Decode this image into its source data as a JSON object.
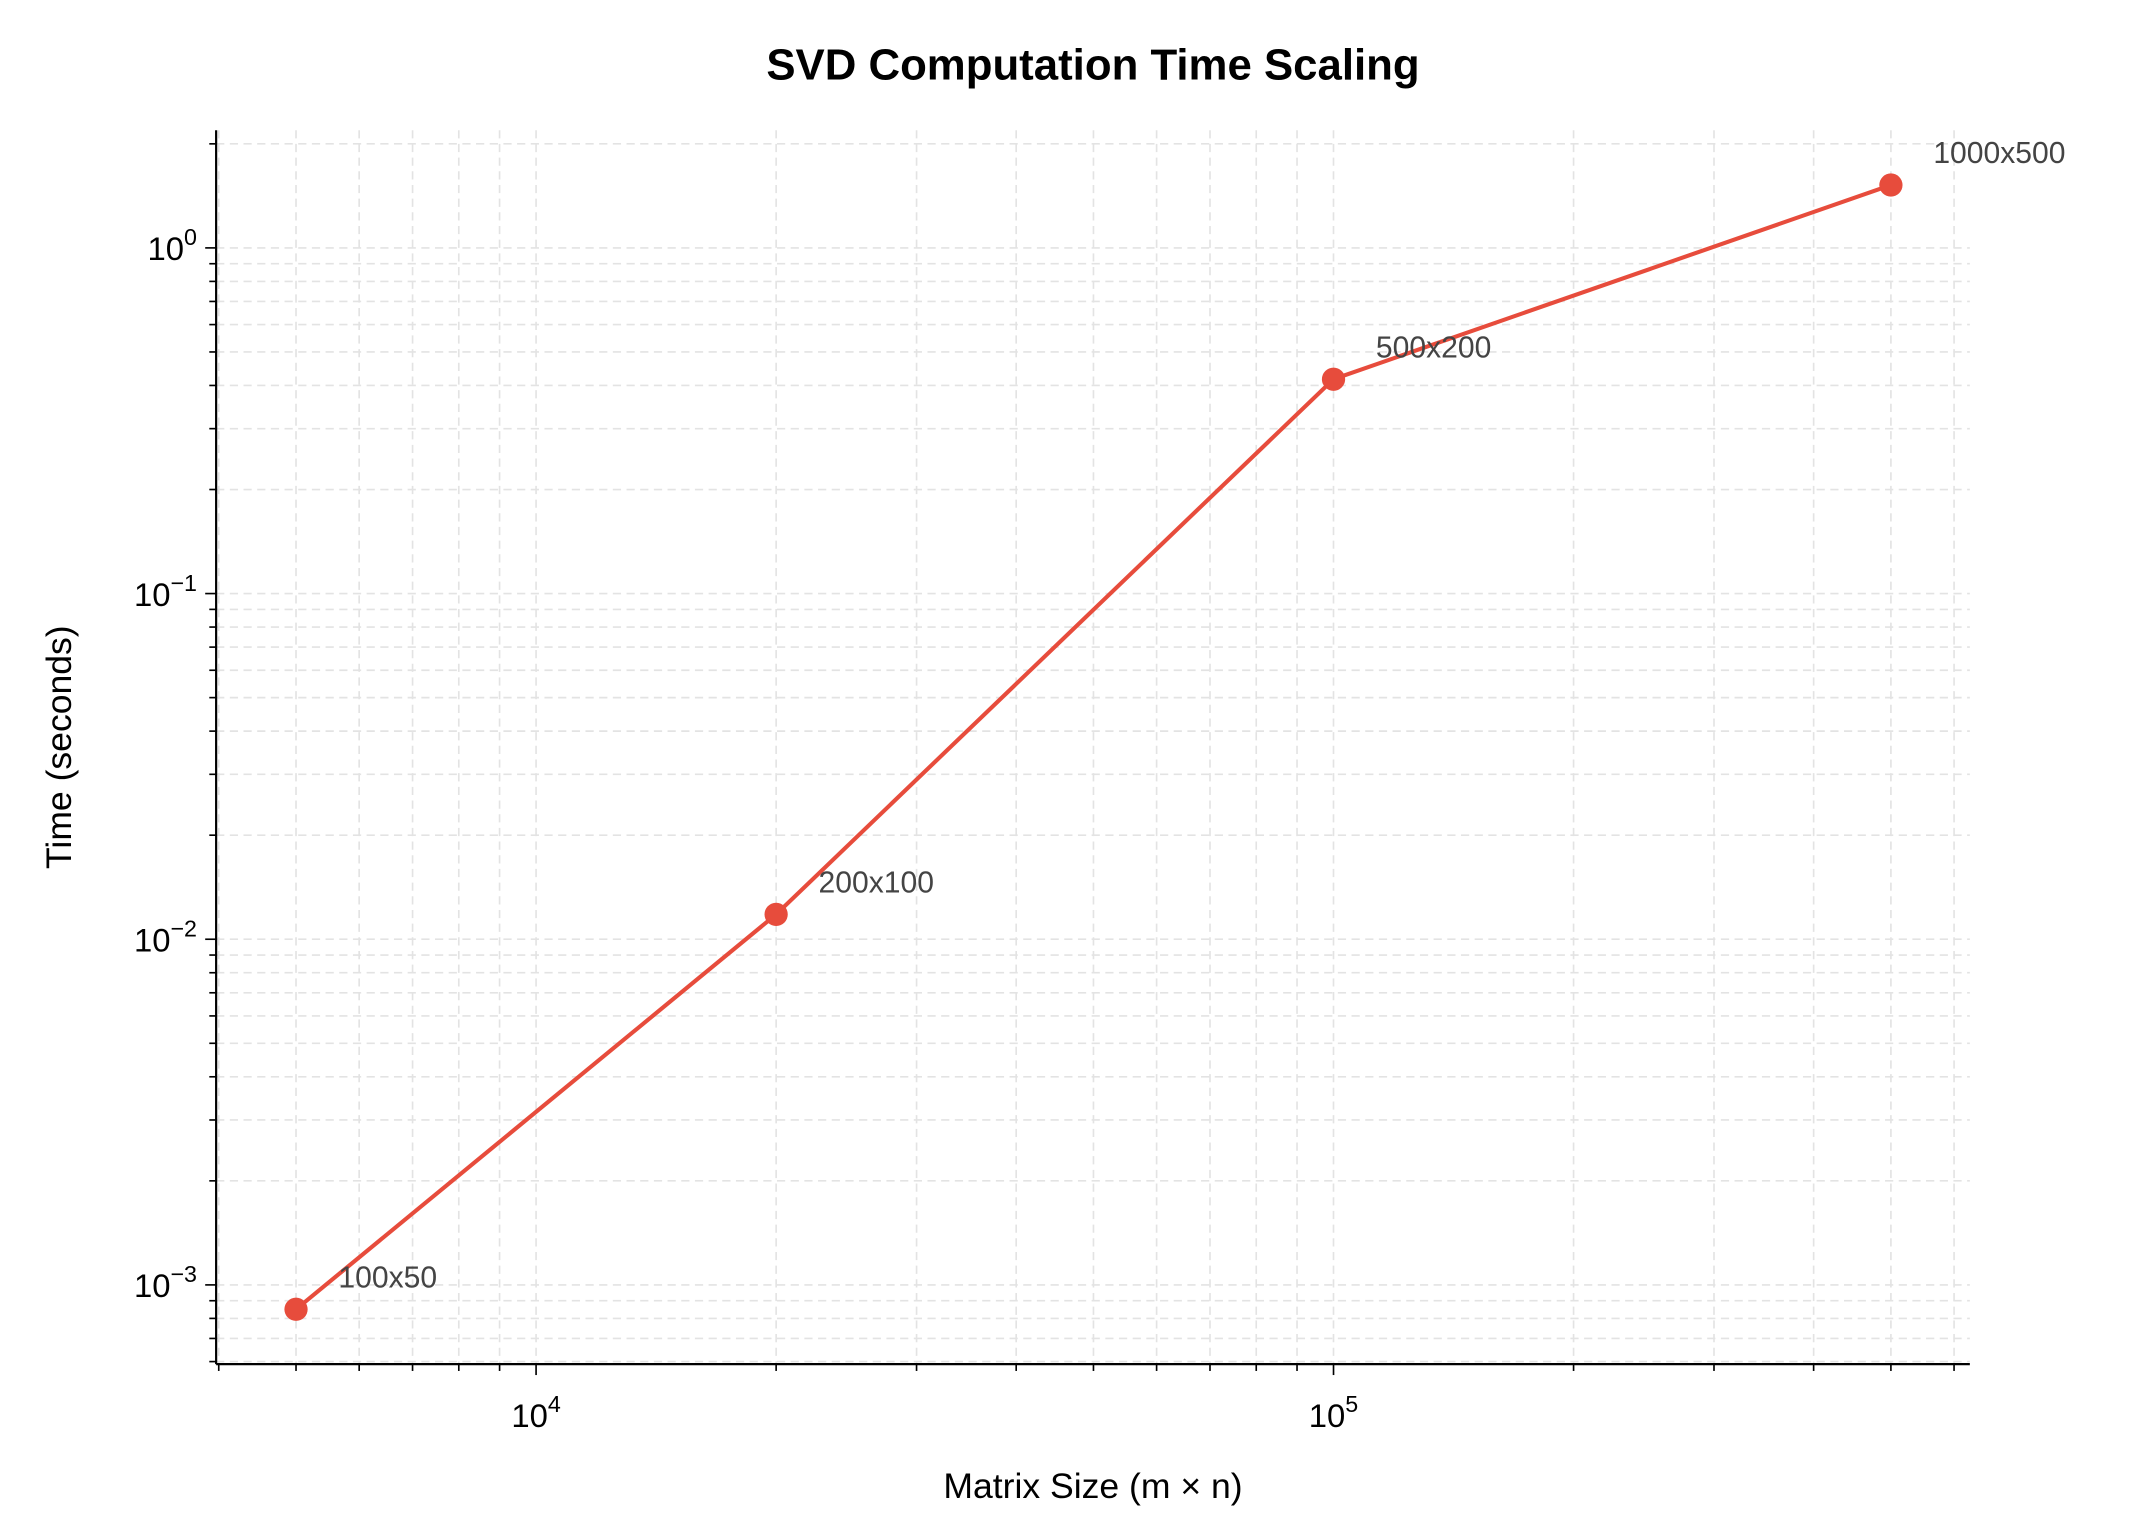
{
  "chart_data": {
    "type": "line",
    "title": "SVD Computation Time Scaling",
    "xlabel": "Matrix Size (m × n)",
    "ylabel": "Time (seconds)",
    "x_scale": "log",
    "y_scale": "log",
    "xlim": [
      3970,
      628000
    ],
    "ylim": [
      0.00059,
      2.19
    ],
    "grid": true,
    "grid_style": "dashed",
    "x_ticks": [
      {
        "value": 10000,
        "base": "10",
        "exp": "4"
      },
      {
        "value": 100000,
        "base": "10",
        "exp": "5"
      }
    ],
    "y_ticks": [
      {
        "value": 0.001,
        "base": "10",
        "exp": "−3"
      },
      {
        "value": 0.01,
        "base": "10",
        "exp": "−2"
      },
      {
        "value": 0.1,
        "base": "10",
        "exp": "−1"
      },
      {
        "value": 1,
        "base": "10",
        "exp": "0"
      }
    ],
    "series": [
      {
        "color": "#e74c3c",
        "marker": "circle",
        "x": [
          5000,
          20000,
          100000,
          500000
        ],
        "y": [
          0.00085,
          0.0118,
          0.417,
          1.52
        ],
        "labels": [
          "100x50",
          "200x100",
          "500x200",
          "1000x500"
        ]
      }
    ]
  }
}
